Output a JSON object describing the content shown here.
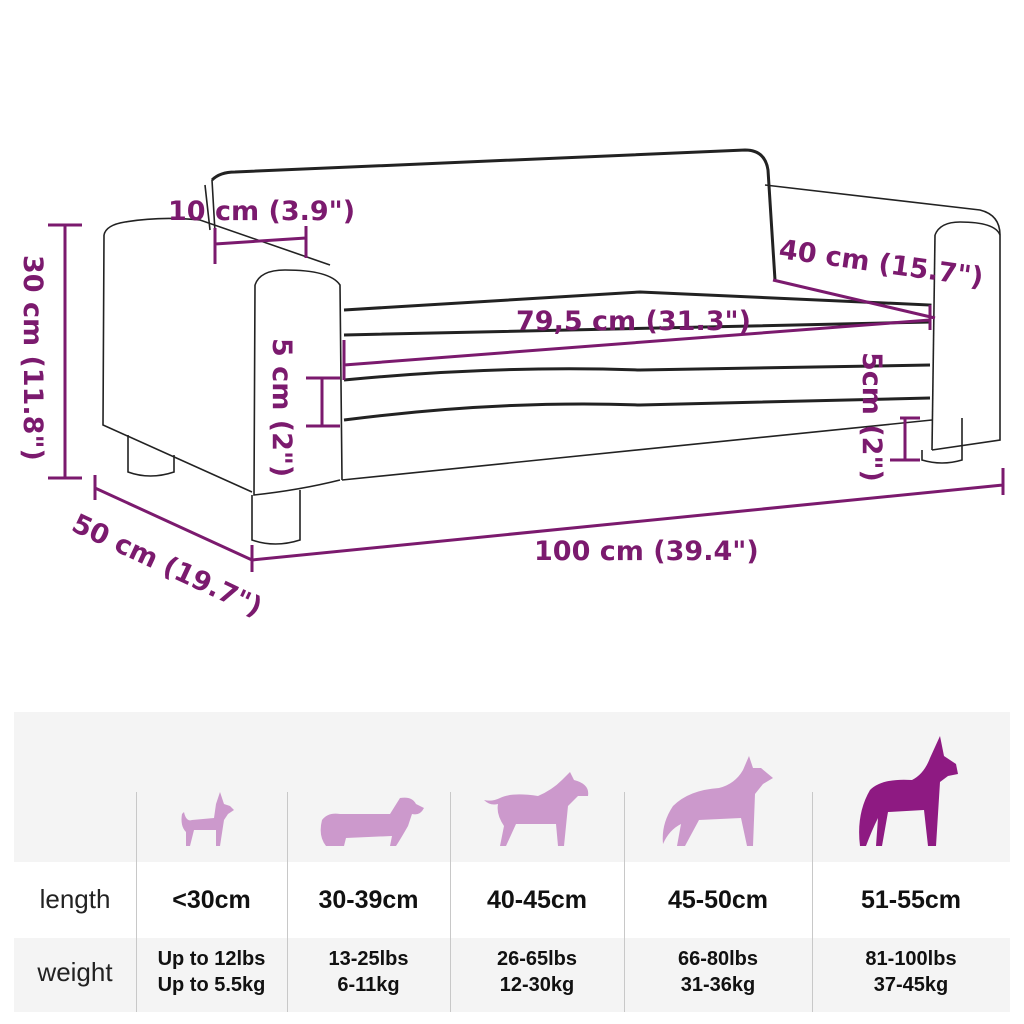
{
  "dimensions": {
    "backrest_depth": "10 cm (3.9\")",
    "height": "30 cm (11.8\")",
    "seat_depth": "40 cm (15.7\")",
    "seat_width": "79,5 cm (31.3\")",
    "seat_thickness": "5 cm (2\")",
    "leg_height": "5cm (2\")",
    "depth": "50 cm (19.7\")",
    "width": "100 cm (39.4\")"
  },
  "colors": {
    "accent": "#7b1a6e",
    "dog_light": "#cc99cc",
    "dog_dark": "#8e1a82",
    "table_gray": "#f4f4f4"
  },
  "size_table": {
    "row_labels": {
      "length": "length",
      "weight": "weight"
    },
    "columns": [
      {
        "icon": "chihuahua-icon",
        "length": "<30cm",
        "weight_lbs": "Up to 12lbs",
        "weight_kg": "Up to 5.5kg"
      },
      {
        "icon": "dachshund-icon",
        "length": "30-39cm",
        "weight_lbs": "13-25lbs",
        "weight_kg": "6-11kg"
      },
      {
        "icon": "bull-terrier-icon",
        "length": "40-45cm",
        "weight_lbs": "26-65lbs",
        "weight_kg": "12-30kg"
      },
      {
        "icon": "shepherd-icon",
        "length": "45-50cm",
        "weight_lbs": "66-80lbs",
        "weight_kg": "31-36kg"
      },
      {
        "icon": "great-dane-icon",
        "length": "51-55cm",
        "weight_lbs": "81-100lbs",
        "weight_kg": "37-45kg"
      }
    ]
  }
}
